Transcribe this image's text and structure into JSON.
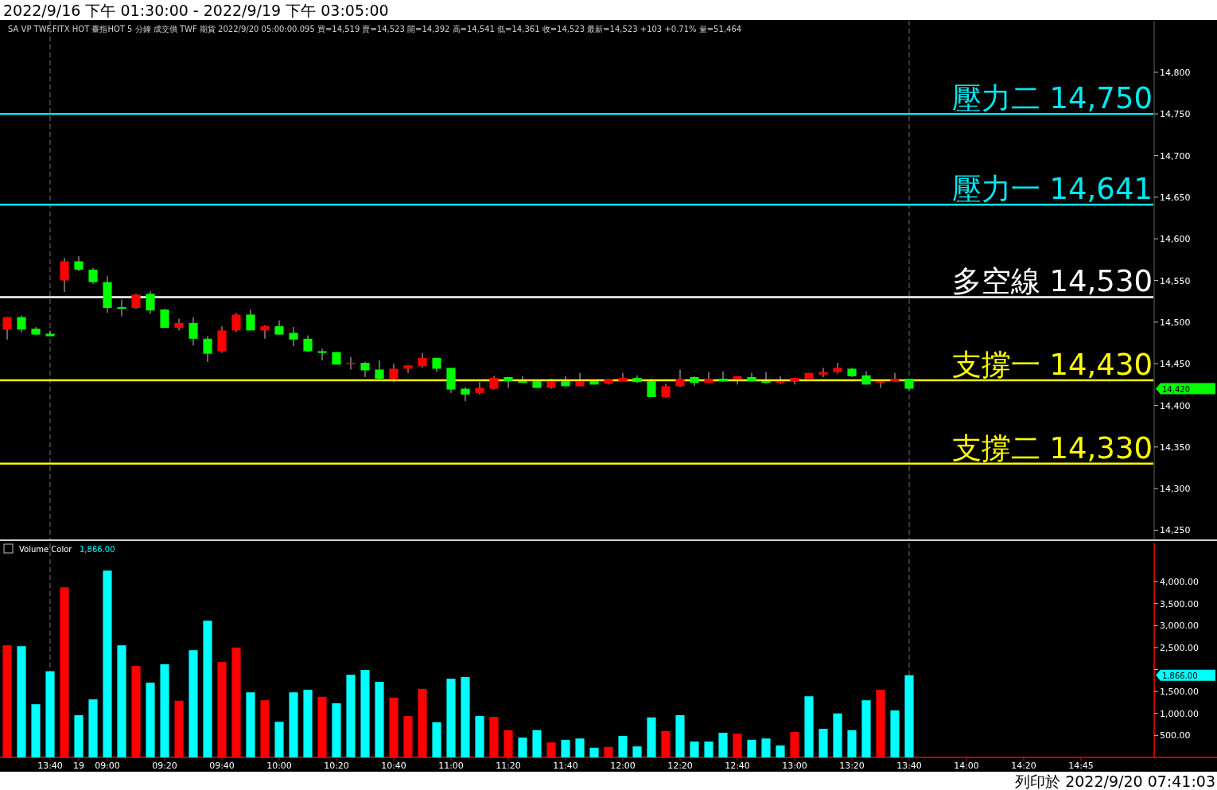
{
  "chart_data": [
    {
      "type": "candlestick",
      "title": "2022/9/16 下午 01:30:00 - 2022/9/19 下午 03:05:00",
      "subtitle": "SA  VP  TWF.FITX HOT  臺指HOT  5 分鐘  成交價  TWF  期貨  2022/9/20  05:00:00.095  買=14,519  賣=14,523  開=14,392  高=14,541  低=14,361  收=14,523  最新=14,523  +103  +0.71%  量=51,464",
      "categories": [
        null,
        null,
        null,
        null,
        null,
        null,
        null,
        null,
        null,
        null,
        null,
        null,
        null,
        null,
        null,
        null,
        null,
        null,
        null,
        null,
        null,
        null,
        null,
        null,
        null,
        null,
        null,
        null,
        null,
        null,
        null,
        null,
        null,
        null,
        null,
        null,
        null,
        null,
        null,
        null,
        null,
        null,
        null,
        null,
        null,
        null,
        null,
        null,
        null,
        null,
        null,
        null,
        null,
        null,
        null,
        null,
        null,
        null,
        null,
        null,
        null,
        null,
        null,
        null,
        null,
        null,
        null,
        null,
        null,
        null,
        null,
        null,
        null,
        null,
        null,
        null,
        null,
        null,
        null,
        null
      ],
      "ohlc": [
        [
          14491,
          14506,
          14479,
          14506
        ],
        [
          14506,
          14508,
          14488,
          14491
        ],
        [
          14492,
          14494,
          14484,
          14485
        ],
        [
          14486,
          14489,
          14483,
          14483
        ],
        [
          14550,
          14577,
          14536,
          14573
        ],
        [
          14573,
          14579,
          14561,
          14563
        ],
        [
          14563,
          14565,
          14546,
          14548
        ],
        [
          14548,
          14555,
          14511,
          14517
        ],
        [
          14518,
          14527,
          14507,
          14516
        ],
        [
          14517,
          14534,
          14516,
          14533
        ],
        [
          14534,
          14537,
          14510,
          14514
        ],
        [
          14515,
          14516,
          14493,
          14493
        ],
        [
          14493,
          14504,
          14490,
          14499
        ],
        [
          14499,
          14506,
          14472,
          14480
        ],
        [
          14480,
          14483,
          14452,
          14462
        ],
        [
          14465,
          14495,
          14463,
          14490
        ],
        [
          14490,
          14511,
          14488,
          14509
        ],
        [
          14509,
          14515,
          14490,
          14490
        ],
        [
          14490,
          14496,
          14480,
          14495
        ],
        [
          14495,
          14502,
          14485,
          14485
        ],
        [
          14487,
          14494,
          14471,
          14479
        ],
        [
          14480,
          14484,
          14464,
          14465
        ],
        [
          14465,
          14468,
          14454,
          14463
        ],
        [
          14464,
          14464,
          14449,
          14449
        ],
        [
          14450,
          14458,
          14443,
          14451
        ],
        [
          14451,
          14452,
          14434,
          14442
        ],
        [
          14443,
          14454,
          14430,
          14432
        ],
        [
          14432,
          14450,
          14428,
          14444
        ],
        [
          14444,
          14448,
          14439,
          14448
        ],
        [
          14447,
          14463,
          14445,
          14457
        ],
        [
          14457,
          14457,
          14440,
          14444
        ],
        [
          14445,
          14445,
          14415,
          14419
        ],
        [
          14420,
          14422,
          14405,
          14413
        ],
        [
          14415,
          14428,
          14413,
          14421
        ],
        [
          14420,
          14435,
          14419,
          14433
        ],
        [
          14434,
          14434,
          14421,
          14429
        ],
        [
          14429,
          14435,
          14427,
          14427
        ],
        [
          14429,
          14429,
          14421,
          14421
        ],
        [
          14421,
          14432,
          14420,
          14429
        ],
        [
          14429,
          14435,
          14423,
          14423
        ],
        [
          14423,
          14439,
          14423,
          14429
        ],
        [
          14429,
          14429,
          14425,
          14425
        ],
        [
          14426,
          14431,
          14425,
          14431
        ],
        [
          14429,
          14439,
          14429,
          14433
        ],
        [
          14433,
          14436,
          14427,
          14428
        ],
        [
          14429,
          14432,
          14410,
          14410
        ],
        [
          14410,
          14426,
          14409,
          14423
        ],
        [
          14423,
          14443,
          14422,
          14432
        ],
        [
          14434,
          14435,
          14423,
          14427
        ],
        [
          14427,
          14440,
          14427,
          14432
        ],
        [
          14432,
          14441,
          14428,
          14429
        ],
        [
          14431,
          14435,
          14425,
          14435
        ],
        [
          14434,
          14439,
          14429,
          14429
        ],
        [
          14429,
          14440,
          14426,
          14427
        ],
        [
          14427,
          14435,
          14426,
          14429
        ],
        [
          14429,
          14433,
          14425,
          14433
        ],
        [
          14432,
          14439,
          14432,
          14439
        ],
        [
          14437,
          14445,
          14434,
          14440
        ],
        [
          14440,
          14451,
          14438,
          14445
        ],
        [
          14444,
          14445,
          14434,
          14435
        ],
        [
          14436,
          14441,
          14425,
          14425
        ],
        [
          14427,
          14429,
          14421,
          14429
        ],
        [
          14429,
          14439,
          14429,
          14432
        ],
        [
          14432,
          14432,
          14418,
          14420
        ],
        null,
        null,
        null,
        null,
        null,
        null,
        null,
        null,
        null,
        null,
        null,
        null,
        null,
        null,
        null,
        null
      ],
      "colors": [
        "#ff0000",
        "#00ff00",
        "#00ff00",
        "#00ff00",
        "#ff0000",
        "#00ff00",
        "#00ff00",
        "#00ff00",
        "#00ff00",
        "#ff0000",
        "#00ff00",
        "#00ff00",
        "#ff0000",
        "#00ff00",
        "#00ff00",
        "#ff0000",
        "#ff0000",
        "#00ff00",
        "#ff0000",
        "#00ff00",
        "#00ff00",
        "#00ff00",
        "#00ff00",
        "#00ff00",
        "#ff0000",
        "#00ff00",
        "#00ff00",
        "#ff0000",
        "#ff0000",
        "#ff0000",
        "#00ff00",
        "#00ff00",
        "#00ff00",
        "#ff0000",
        "#ff0000",
        "#00ff00",
        "#00ff00",
        "#00ff00",
        "#ff0000",
        "#00ff00",
        "#ff0000",
        "#00ff00",
        "#ff0000",
        "#ff0000",
        "#00ff00",
        "#00ff00",
        "#ff0000",
        "#ff0000",
        "#00ff00",
        "#ff0000",
        "#00ff00",
        "#ff0000",
        "#00ff00",
        "#00ff00",
        "#ff0000",
        "#ff0000",
        "#ff0000",
        "#ff0000",
        "#ff0000",
        "#00ff00",
        "#00ff00",
        "#ff0000",
        "#ff0000",
        "#00ff00",
        null,
        null,
        null,
        null,
        null,
        null,
        null,
        null,
        null,
        null,
        null,
        null,
        null,
        null,
        null,
        null
      ],
      "ylim": [
        14239,
        14862
      ],
      "yticks": [
        {
          "value": 14250,
          "label": "14,250"
        },
        {
          "value": 14300,
          "label": "14,300"
        },
        {
          "value": 14350,
          "label": "14,350"
        },
        {
          "value": 14400,
          "label": "14,400"
        },
        {
          "value": 14450,
          "label": "14,450"
        },
        {
          "value": 14500,
          "label": "14,500"
        },
        {
          "value": 14550,
          "label": "14,550"
        },
        {
          "value": 14600,
          "label": "14,600"
        },
        {
          "value": 14650,
          "label": "14,650"
        },
        {
          "value": 14700,
          "label": "14,700"
        },
        {
          "value": 14750,
          "label": "14,750"
        },
        {
          "value": 14800,
          "label": "14,800"
        }
      ],
      "tick_labels": "y",
      "ref_lines": [
        {
          "axis": "y",
          "value": 14750,
          "label": "壓力二 14,750",
          "color": "#00e8f0"
        },
        {
          "axis": "y",
          "value": 14641,
          "label": "壓力一 14,641",
          "color": "#00e8f0"
        },
        {
          "axis": "y",
          "value": 14530,
          "label": "多空線 14,530",
          "color": "#ffffff"
        },
        {
          "axis": "y",
          "value": 14430,
          "label": "支撐一 14,430",
          "color": "#ffff00"
        },
        {
          "axis": "y",
          "value": 14330,
          "label": "支撐二 14,330",
          "color": "#ffff00"
        }
      ],
      "annotations": [
        "14,420",
        "列印於 2022/9/20 07:41:03"
      ]
    },
    {
      "type": "bar",
      "title": "Volume Color",
      "categories": [
        null,
        null,
        null,
        "13:40",
        null,
        "19",
        null,
        "09:00",
        null,
        null,
        null,
        "09:20",
        null,
        null,
        null,
        "09:40",
        null,
        null,
        null,
        "10:00",
        null,
        null,
        null,
        "10:20",
        null,
        null,
        null,
        "10:40",
        null,
        null,
        null,
        "11:00",
        null,
        null,
        null,
        "11:20",
        null,
        null,
        null,
        "11:40",
        null,
        null,
        null,
        "12:00",
        null,
        null,
        null,
        "12:20",
        null,
        null,
        null,
        "12:40",
        null,
        null,
        null,
        "13:00",
        null,
        null,
        null,
        "13:20",
        null,
        null,
        null,
        "13:40",
        null,
        null,
        null,
        "14:00",
        null,
        null,
        null,
        "14:20",
        null,
        null,
        null,
        "14:45",
        null,
        null,
        null,
        null
      ],
      "values": [
        2550,
        2530,
        1210,
        1960,
        3870,
        960,
        1320,
        4250,
        2550,
        2080,
        1700,
        2120,
        1290,
        2440,
        3110,
        2170,
        2500,
        1480,
        1300,
        810,
        1480,
        1540,
        1380,
        1230,
        1880,
        1990,
        1720,
        1360,
        940,
        1560,
        800,
        1790,
        1830,
        940,
        920,
        620,
        450,
        620,
        340,
        400,
        430,
        220,
        240,
        490,
        250,
        910,
        600,
        960,
        360,
        360,
        560,
        540,
        400,
        430,
        270,
        580,
        1390,
        650,
        1000,
        620,
        1300,
        1540,
        1070,
        1870,
        null,
        null,
        null,
        null,
        null,
        null,
        null,
        null,
        null,
        null,
        null,
        null,
        null,
        null,
        null,
        null
      ],
      "colors": [
        "#ff0000",
        "#00ffff",
        "#00ffff",
        "#00ffff",
        "#ff0000",
        "#00ffff",
        "#00ffff",
        "#00ffff",
        "#00ffff",
        "#ff0000",
        "#00ffff",
        "#00ffff",
        "#ff0000",
        "#00ffff",
        "#00ffff",
        "#ff0000",
        "#ff0000",
        "#00ffff",
        "#ff0000",
        "#00ffff",
        "#00ffff",
        "#00ffff",
        "#ff0000",
        "#00ffff",
        "#00ffff",
        "#00ffff",
        "#00ffff",
        "#ff0000",
        "#ff0000",
        "#ff0000",
        "#00ffff",
        "#00ffff",
        "#00ffff",
        "#00ffff",
        "#ff0000",
        "#ff0000",
        "#00ffff",
        "#00ffff",
        "#ff0000",
        "#00ffff",
        "#00ffff",
        "#00ffff",
        "#ff0000",
        "#00ffff",
        "#00ffff",
        "#00ffff",
        "#ff0000",
        "#00ffff",
        "#00ffff",
        "#00ffff",
        "#00ffff",
        "#ff0000",
        "#00ffff",
        "#00ffff",
        "#00ffff",
        "#ff0000",
        "#00ffff",
        "#00ffff",
        "#00ffff",
        "#00ffff",
        "#00ffff",
        "#ff0000",
        "#00ffff",
        "#00ffff",
        null,
        null,
        null,
        null,
        null,
        null,
        null,
        null,
        null,
        null,
        null,
        null,
        null,
        null,
        null,
        null
      ],
      "ylim": [
        0,
        4870
      ],
      "yticks": [
        {
          "value": 500,
          "label": "500.00"
        },
        {
          "value": 1000,
          "label": "1,000.00"
        },
        {
          "value": 1500,
          "label": "1,500.00"
        },
        {
          "value": 2000,
          "label": null
        },
        {
          "value": 2500,
          "label": "2,500.00"
        },
        {
          "value": 3000,
          "label": "3,000.00"
        },
        {
          "value": 3500,
          "label": "3,500.00"
        },
        {
          "value": 4000,
          "label": "4,000.00"
        }
      ],
      "annotations": [
        "1,866.00",
        "1,866.00"
      ]
    }
  ]
}
